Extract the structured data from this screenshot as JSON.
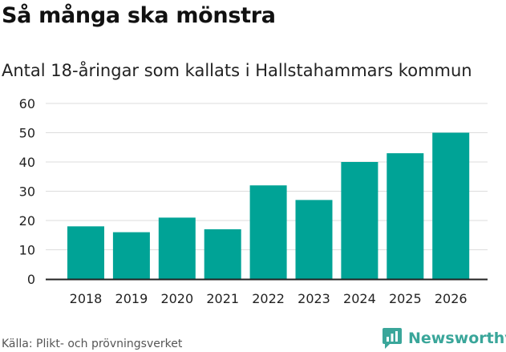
{
  "header": {
    "title": "Så många ska mönstra",
    "subtitle": "Antal 18-åringar som kallats i Hallstahammars kommun"
  },
  "footer": {
    "source": "Källa: Plikt- och prövningsverket",
    "brand": "Newsworthy"
  },
  "colors": {
    "bar": "#00a396",
    "grid": "#dddddd",
    "axis": "#222222",
    "brand": "#3aa69a"
  },
  "chart_data": {
    "type": "bar",
    "title": "Så många ska mönstra",
    "subtitle": "Antal 18-åringar som kallats i Hallstahammars kommun",
    "xlabel": "",
    "ylabel": "",
    "categories": [
      "2018",
      "2019",
      "2020",
      "2021",
      "2022",
      "2023",
      "2024",
      "2025",
      "2026"
    ],
    "values": [
      18,
      16,
      21,
      17,
      32,
      27,
      40,
      43,
      50
    ],
    "ylim": [
      0,
      60
    ],
    "yticks": [
      0,
      10,
      20,
      30,
      40,
      50,
      60
    ],
    "grid": true,
    "legend": "none"
  }
}
